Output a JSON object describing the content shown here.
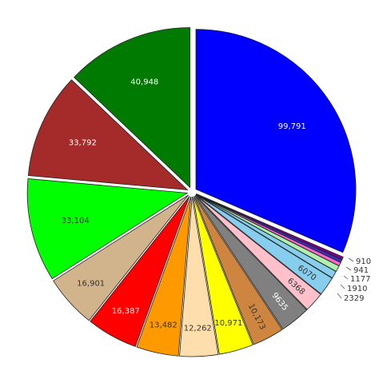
{
  "chart_data": {
    "type": "pie",
    "title": "",
    "exploded": true,
    "legend": "none",
    "slices": [
      {
        "value": 99791,
        "label": "99,791",
        "color": "#0000ff",
        "label_color": "#ffffff",
        "placement": "inside"
      },
      {
        "value": 910,
        "label": "910",
        "color": "#800080",
        "label_color": "#333333",
        "placement": "outside"
      },
      {
        "value": 941,
        "label": "941",
        "color": "#3333cc",
        "label_color": "#333333",
        "placement": "outside"
      },
      {
        "value": 1177,
        "label": "1177",
        "color": "#ff66cc",
        "label_color": "#333333",
        "placement": "outside"
      },
      {
        "value": 1910,
        "label": "1910",
        "color": "#aef0ae",
        "label_color": "#333333",
        "placement": "outside"
      },
      {
        "value": 2329,
        "label": "2329",
        "color": "#87ceeb",
        "label_color": "#333333",
        "placement": "outside"
      },
      {
        "value": 6070,
        "label": "6070",
        "color": "#87cdee",
        "label_color": "#333333",
        "placement": "inside"
      },
      {
        "value": 6368,
        "label": "6368",
        "color": "#ffc0cb",
        "label_color": "#333333",
        "placement": "inside"
      },
      {
        "value": 9635,
        "label": "9635",
        "color": "#808080",
        "label_color": "#ffffff",
        "placement": "inside"
      },
      {
        "value": 10173,
        "label": "10,173",
        "color": "#cd853f",
        "label_color": "#333333",
        "placement": "inside"
      },
      {
        "value": 10971,
        "label": "10,971",
        "color": "#ffff00",
        "label_color": "#333333",
        "placement": "inside"
      },
      {
        "value": 12262,
        "label": "12,262",
        "color": "#ffdead",
        "label_color": "#333333",
        "placement": "inside"
      },
      {
        "value": 13482,
        "label": "13,482",
        "color": "#ff9900",
        "label_color": "#333333",
        "placement": "inside"
      },
      {
        "value": 16387,
        "label": "16,387",
        "color": "#ff0000",
        "label_color": "#ffffff",
        "placement": "inside"
      },
      {
        "value": 16901,
        "label": "16,901",
        "color": "#d2b48c",
        "label_color": "#333333",
        "placement": "inside"
      },
      {
        "value": 33104,
        "label": "33,104",
        "color": "#00ff00",
        "label_color": "#333333",
        "placement": "inside"
      },
      {
        "value": 33792,
        "label": "33,792",
        "color": "#a52a2a",
        "label_color": "#ffffff",
        "placement": "inside"
      },
      {
        "value": 40948,
        "label": "40,948",
        "color": "#007a00",
        "label_color": "#ffffff",
        "placement": "inside"
      }
    ]
  }
}
